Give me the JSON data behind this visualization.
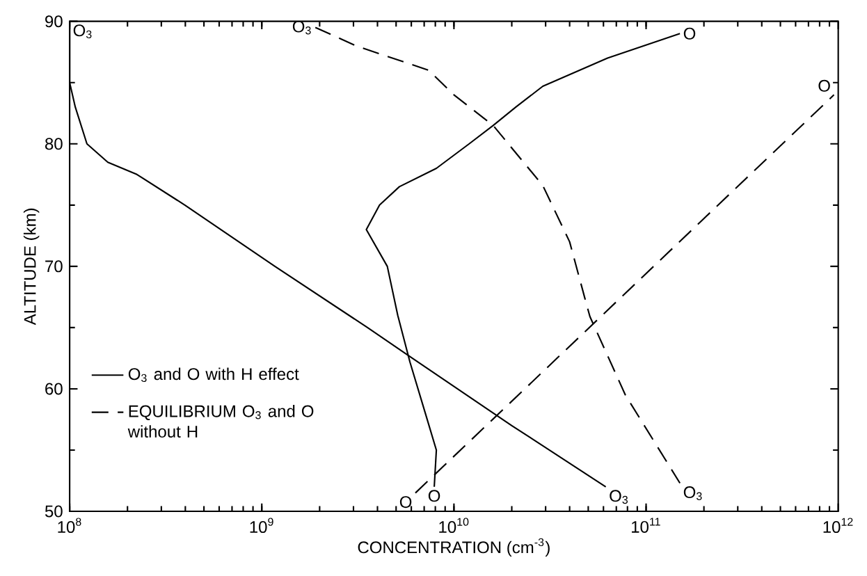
{
  "chart_data": {
    "type": "line",
    "xlabel": "CONCENTRATION (cm$^{-3}$)",
    "ylabel": "ALTITUDE (km)",
    "log": "x",
    "grid": false,
    "marker": "none",
    "legend": "left",
    "xlim": [
      100000000.0,
      1000000000000.0
    ],
    "ylim": [
      50,
      90
    ],
    "xticks": [
      {
        "value": 100000000.0,
        "label": "10$^{8}$"
      },
      {
        "value": 1000000000.0,
        "label": "10$^{9}$"
      },
      {
        "value": 10000000000.0,
        "label": "10$^{10}$"
      },
      {
        "value": 100000000000.0,
        "label": "10$^{11}$"
      },
      {
        "value": 1000000000000.0,
        "label": "10$^{12}$"
      }
    ],
    "yticks": [
      50,
      60,
      70,
      80,
      90
    ],
    "series": [
      {
        "name": "O$_{3}$ and O with H effect",
        "color": "#000000",
        "line_style": "solid",
        "x": [
          100000000.0,
          100000000.0,
          107000000.0,
          123000000.0,
          158000000.0,
          224000000.0,
          398000000.0,
          1170000000.0,
          3550000000.0,
          6760000000.0,
          20000000000.0,
          61700000000.0
        ],
        "values": [
          90,
          85,
          83,
          80,
          78.5,
          77.5,
          75,
          70,
          65,
          62,
          57,
          52
        ]
      },
      {
        "color": "#000000",
        "line_style": "solid",
        "x": [
          7900000000.0,
          8100000000.0,
          7100000000.0,
          5900000000.0,
          5100000000.0,
          4500000000.0,
          3500000000.0,
          4100000000.0,
          5200000000.0,
          8100000000.0,
          12000000000.0,
          16000000000.0,
          21000000000.0,
          29000000000.0,
          63000000000.0,
          150000000000.0
        ],
        "values": [
          52,
          55,
          58,
          62.2,
          66,
          70,
          73,
          75,
          76.5,
          78,
          80,
          81.5,
          83,
          84.7,
          87,
          89
        ]
      },
      {
        "name": "EQUILIBRIUM O$_{3}$ and O without H",
        "color": "#000000",
        "line_style": "dashed",
        "x": [
          1900000000.0,
          3100000000.0,
          7400000000.0,
          10000000000.0,
          16000000000.0,
          29000000000.0,
          40000000000.0,
          48000000000.0,
          51000000000.0,
          78000000000.0,
          150000000000.0
        ],
        "values": [
          89.5,
          88,
          86,
          84,
          81.5,
          76.6,
          72,
          67.4,
          65.9,
          59.5,
          52.3
        ]
      },
      {
        "color": "#000000",
        "line_style": "dashed",
        "x": [
          6300000000.0,
          950000000000.0
        ],
        "values": [
          51.5,
          84
        ]
      }
    ],
    "annotations": [
      {
        "text": "O$_{3}$",
        "x": 100000000.0,
        "y": 90
      },
      {
        "text": "O$_{3}$",
        "x": 1900000000.0,
        "y": 89.5
      },
      {
        "text": "O",
        "x": 150000000000.0,
        "y": 89
      },
      {
        "text": "O",
        "x": 950000000000.0,
        "y": 84
      },
      {
        "text": "O",
        "x": 6300000000.0,
        "y": 51.5
      },
      {
        "text": "O",
        "x": 7900000000.0,
        "y": 52
      },
      {
        "text": "O$_{3}$",
        "x": 61700000000.0,
        "y": 52
      },
      {
        "text": "O$_{3}$",
        "x": 150000000000.0,
        "y": 52.3
      }
    ]
  }
}
